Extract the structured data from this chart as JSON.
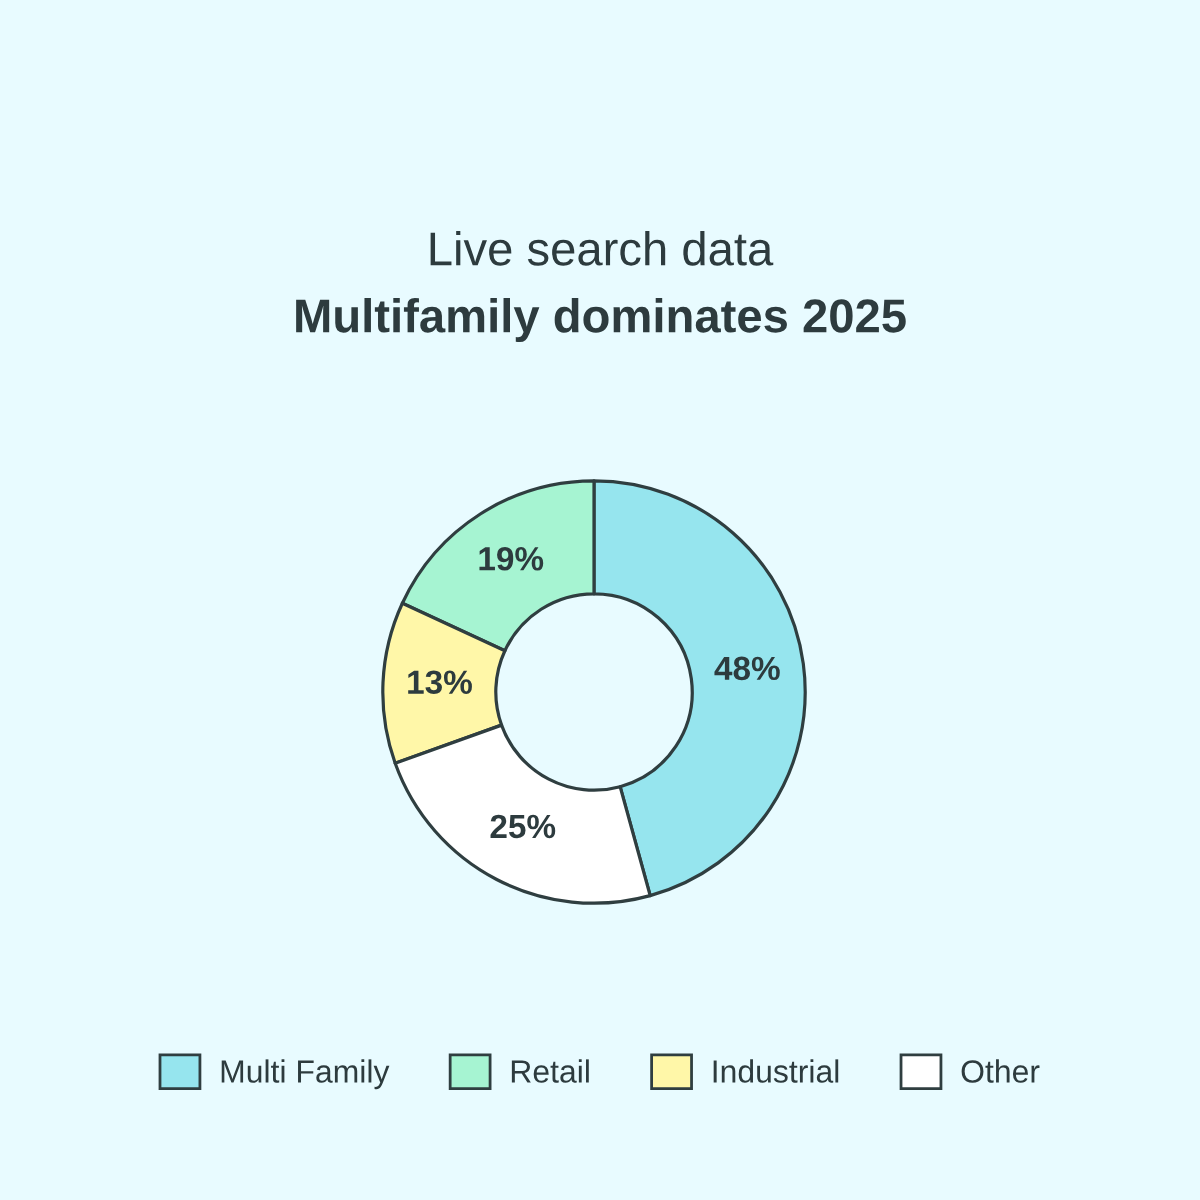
{
  "chart_data": {
    "type": "donut",
    "title": "Live search data",
    "subtitle": "Multifamily dominates 2025",
    "categories": [
      "Multi Family",
      "Retail",
      "Industrial",
      "Other"
    ],
    "values": [
      48,
      19,
      13,
      25
    ],
    "value_labels": [
      "48%",
      "19%",
      "13%",
      "25%"
    ],
    "colors": [
      "#96e5ee",
      "#a6f4d2",
      "#fff7a8",
      "#ffffff"
    ],
    "legend": "bottom"
  }
}
